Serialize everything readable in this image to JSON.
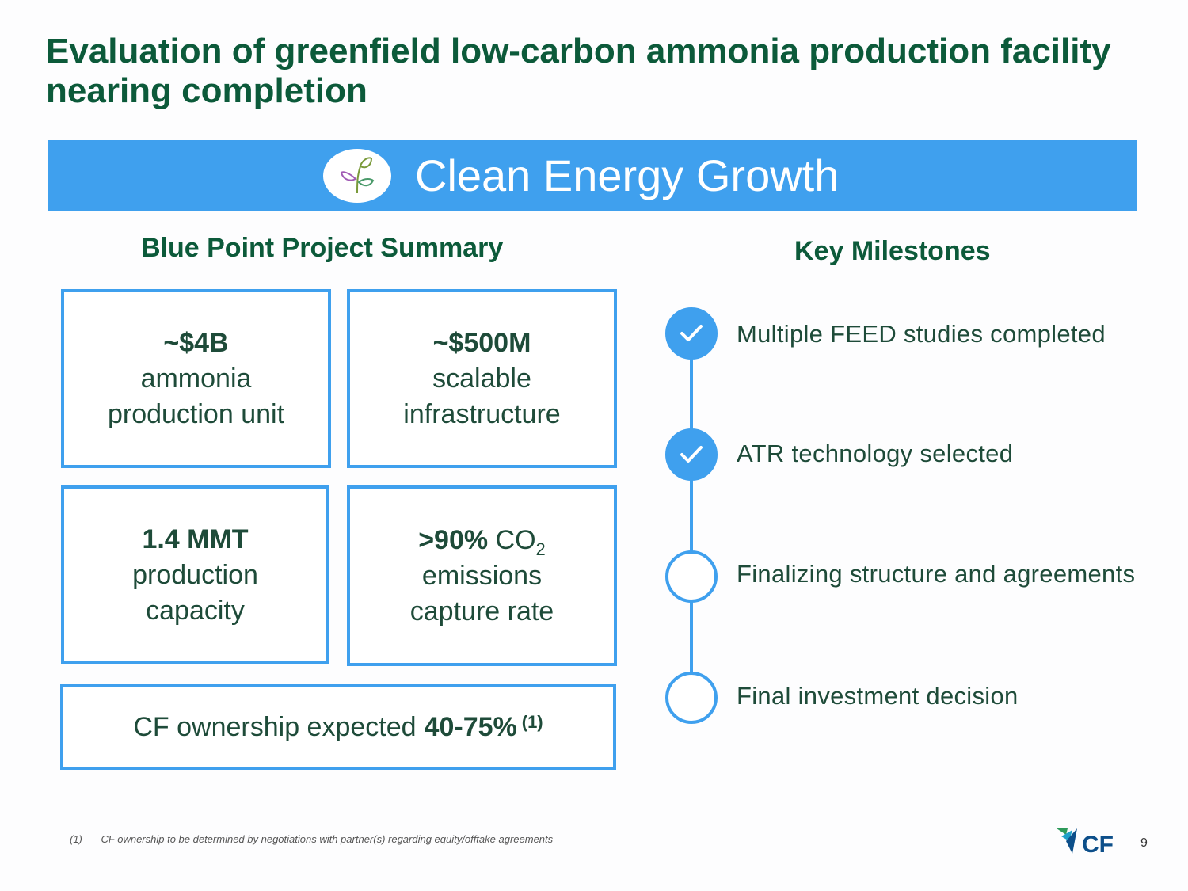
{
  "slide": {
    "title": "Evaluation of greenfield low-carbon ammonia production facility nearing completion",
    "page_number": "9"
  },
  "banner": {
    "title": "Clean Energy Growth",
    "icon": "leaf-sprout-icon"
  },
  "summary": {
    "heading": "Blue Point Project Summary",
    "boxes": [
      {
        "value": "~$4B",
        "desc_line1": "ammonia",
        "desc_line2": "production unit"
      },
      {
        "value": "~$500M",
        "desc_line1": "scalable",
        "desc_line2": "infrastructure"
      },
      {
        "value": "1.4 MMT",
        "desc_line1": "production",
        "desc_line2": "capacity"
      },
      {
        "value": ">90%",
        "unit": "CO",
        "unit_sub": "2",
        "desc_line1": "emissions",
        "desc_line2": "capture rate"
      }
    ],
    "ownership": {
      "text": "CF ownership expected",
      "value": "40-75%",
      "footnote_ref": "(1)"
    }
  },
  "milestones": {
    "heading": "Key Milestones",
    "items": [
      {
        "label": "Multiple FEED studies completed",
        "completed": true
      },
      {
        "label": "ATR technology selected",
        "completed": true
      },
      {
        "label": "Finalizing structure and agreements",
        "completed": false
      },
      {
        "label": "Final investment decision",
        "completed": false
      }
    ]
  },
  "footnote": {
    "number": "(1)",
    "text": "CF ownership to be determined by negotiations with partner(s) regarding equity/offtake agreements"
  },
  "logo": {
    "text": "CF",
    "icon": "cf-industries-logo"
  },
  "colors": {
    "accent": "#3fa0ee",
    "title_green": "#0c5a3a",
    "text": "#1e4b39"
  }
}
